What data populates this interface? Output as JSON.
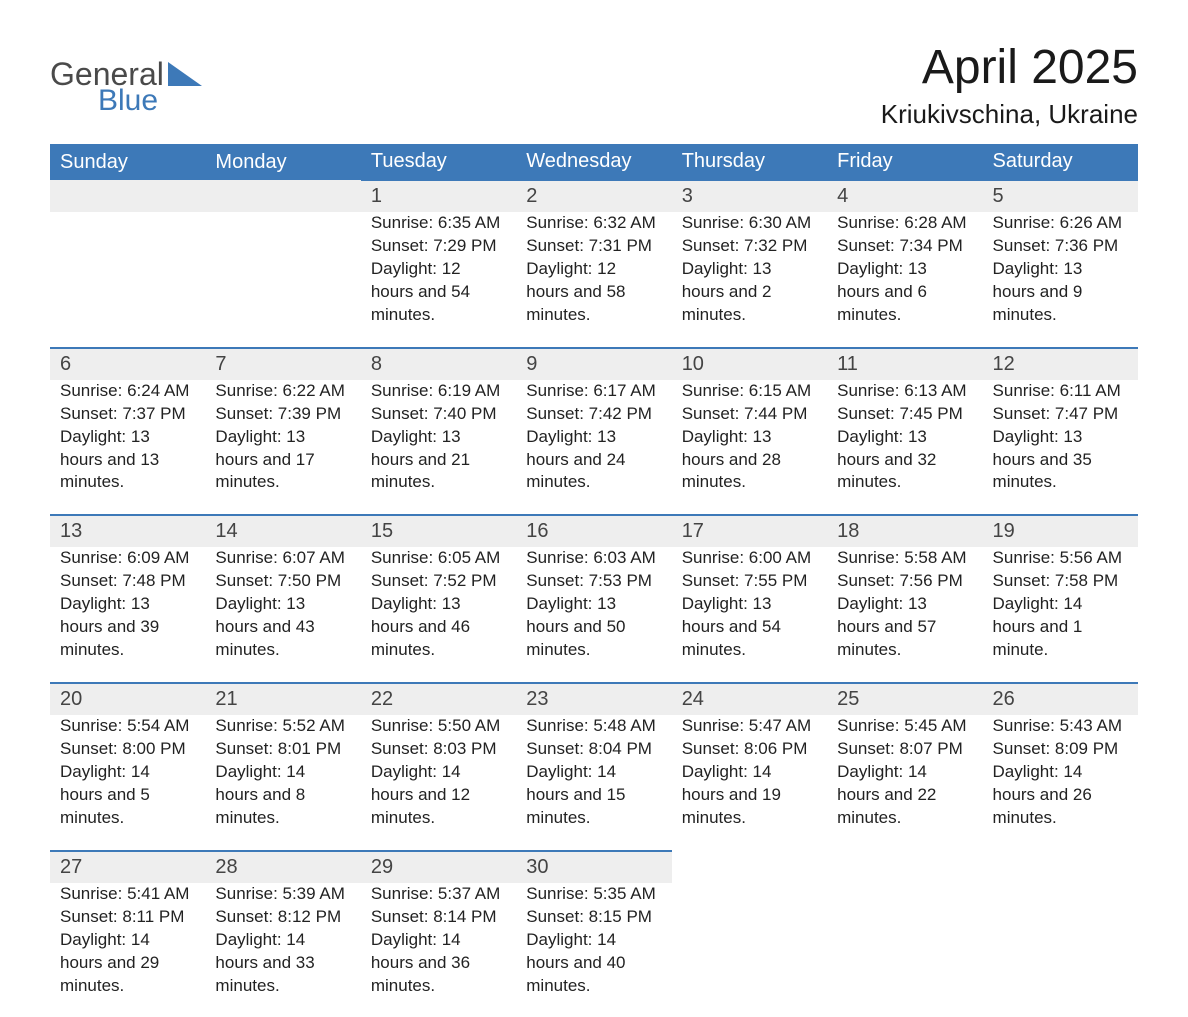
{
  "logo": {
    "top": "General",
    "bottom": "Blue"
  },
  "title": "April 2025",
  "location": "Kriukivschina, Ukraine",
  "colors": {
    "header_bg": "#3d79b8",
    "header_text": "#ffffff",
    "daynum_bg": "#eeeeee",
    "border_top": "#3d79b8",
    "page_bg": "#ffffff",
    "text": "#222222",
    "logo_gray": "#4a4a4a",
    "logo_blue": "#3d79b8"
  },
  "day_headers": [
    "Sunday",
    "Monday",
    "Tuesday",
    "Wednesday",
    "Thursday",
    "Friday",
    "Saturday"
  ],
  "weeks": [
    [
      null,
      null,
      {
        "n": "1",
        "sunrise": "6:35 AM",
        "sunset": "7:29 PM",
        "daylight": "12 hours and 54 minutes."
      },
      {
        "n": "2",
        "sunrise": "6:32 AM",
        "sunset": "7:31 PM",
        "daylight": "12 hours and 58 minutes."
      },
      {
        "n": "3",
        "sunrise": "6:30 AM",
        "sunset": "7:32 PM",
        "daylight": "13 hours and 2 minutes."
      },
      {
        "n": "4",
        "sunrise": "6:28 AM",
        "sunset": "7:34 PM",
        "daylight": "13 hours and 6 minutes."
      },
      {
        "n": "5",
        "sunrise": "6:26 AM",
        "sunset": "7:36 PM",
        "daylight": "13 hours and 9 minutes."
      }
    ],
    [
      {
        "n": "6",
        "sunrise": "6:24 AM",
        "sunset": "7:37 PM",
        "daylight": "13 hours and 13 minutes."
      },
      {
        "n": "7",
        "sunrise": "6:22 AM",
        "sunset": "7:39 PM",
        "daylight": "13 hours and 17 minutes."
      },
      {
        "n": "8",
        "sunrise": "6:19 AM",
        "sunset": "7:40 PM",
        "daylight": "13 hours and 21 minutes."
      },
      {
        "n": "9",
        "sunrise": "6:17 AM",
        "sunset": "7:42 PM",
        "daylight": "13 hours and 24 minutes."
      },
      {
        "n": "10",
        "sunrise": "6:15 AM",
        "sunset": "7:44 PM",
        "daylight": "13 hours and 28 minutes."
      },
      {
        "n": "11",
        "sunrise": "6:13 AM",
        "sunset": "7:45 PM",
        "daylight": "13 hours and 32 minutes."
      },
      {
        "n": "12",
        "sunrise": "6:11 AM",
        "sunset": "7:47 PM",
        "daylight": "13 hours and 35 minutes."
      }
    ],
    [
      {
        "n": "13",
        "sunrise": "6:09 AM",
        "sunset": "7:48 PM",
        "daylight": "13 hours and 39 minutes."
      },
      {
        "n": "14",
        "sunrise": "6:07 AM",
        "sunset": "7:50 PM",
        "daylight": "13 hours and 43 minutes."
      },
      {
        "n": "15",
        "sunrise": "6:05 AM",
        "sunset": "7:52 PM",
        "daylight": "13 hours and 46 minutes."
      },
      {
        "n": "16",
        "sunrise": "6:03 AM",
        "sunset": "7:53 PM",
        "daylight": "13 hours and 50 minutes."
      },
      {
        "n": "17",
        "sunrise": "6:00 AM",
        "sunset": "7:55 PM",
        "daylight": "13 hours and 54 minutes."
      },
      {
        "n": "18",
        "sunrise": "5:58 AM",
        "sunset": "7:56 PM",
        "daylight": "13 hours and 57 minutes."
      },
      {
        "n": "19",
        "sunrise": "5:56 AM",
        "sunset": "7:58 PM",
        "daylight": "14 hours and 1 minute."
      }
    ],
    [
      {
        "n": "20",
        "sunrise": "5:54 AM",
        "sunset": "8:00 PM",
        "daylight": "14 hours and 5 minutes."
      },
      {
        "n": "21",
        "sunrise": "5:52 AM",
        "sunset": "8:01 PM",
        "daylight": "14 hours and 8 minutes."
      },
      {
        "n": "22",
        "sunrise": "5:50 AM",
        "sunset": "8:03 PM",
        "daylight": "14 hours and 12 minutes."
      },
      {
        "n": "23",
        "sunrise": "5:48 AM",
        "sunset": "8:04 PM",
        "daylight": "14 hours and 15 minutes."
      },
      {
        "n": "24",
        "sunrise": "5:47 AM",
        "sunset": "8:06 PM",
        "daylight": "14 hours and 19 minutes."
      },
      {
        "n": "25",
        "sunrise": "5:45 AM",
        "sunset": "8:07 PM",
        "daylight": "14 hours and 22 minutes."
      },
      {
        "n": "26",
        "sunrise": "5:43 AM",
        "sunset": "8:09 PM",
        "daylight": "14 hours and 26 minutes."
      }
    ],
    [
      {
        "n": "27",
        "sunrise": "5:41 AM",
        "sunset": "8:11 PM",
        "daylight": "14 hours and 29 minutes."
      },
      {
        "n": "28",
        "sunrise": "5:39 AM",
        "sunset": "8:12 PM",
        "daylight": "14 hours and 33 minutes."
      },
      {
        "n": "29",
        "sunrise": "5:37 AM",
        "sunset": "8:14 PM",
        "daylight": "14 hours and 36 minutes."
      },
      {
        "n": "30",
        "sunrise": "5:35 AM",
        "sunset": "8:15 PM",
        "daylight": "14 hours and 40 minutes."
      },
      null,
      null,
      null
    ]
  ],
  "labels": {
    "sunrise": "Sunrise: ",
    "sunset": "Sunset: ",
    "daylight": "Daylight: "
  }
}
